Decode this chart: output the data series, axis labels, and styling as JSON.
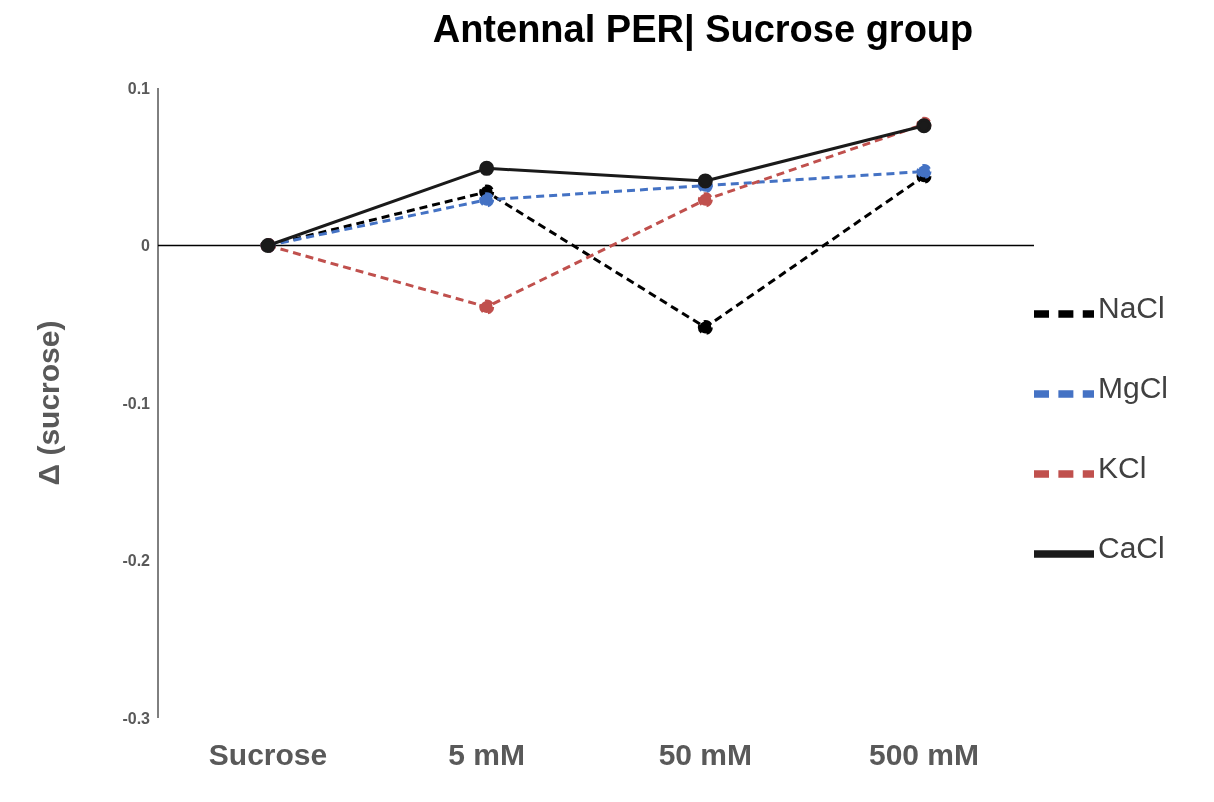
{
  "chart_data": {
    "type": "line",
    "title": "Antennal PER| Sucrose group",
    "ylabel": "Δ (sucrose)",
    "categories": [
      "Sucrose",
      "5 mM",
      "50 mM",
      "500 mM"
    ],
    "series": [
      {
        "name": "NaCl",
        "color": "#000000",
        "line_style": "dashed",
        "values": [
          0,
          0.034,
          -0.052,
          0.044
        ]
      },
      {
        "name": "MgCl",
        "color": "#4472c4",
        "line_style": "dashed",
        "values": [
          0,
          0.029,
          0.038,
          0.047
        ]
      },
      {
        "name": "KCl",
        "color": "#c0504d",
        "line_style": "dashed",
        "values": [
          0,
          -0.039,
          0.029,
          0.077
        ]
      },
      {
        "name": "CaCl",
        "color": "#1a1a1a",
        "line_style": "solid",
        "values": [
          0,
          0.049,
          0.041,
          0.076
        ]
      }
    ],
    "ylim": [
      -0.3,
      0.1
    ],
    "yticks": [
      -0.3,
      -0.2,
      -0.1,
      0,
      0.1
    ],
    "grid": false,
    "legend": "right",
    "marker": "circle",
    "ref_lines": [
      {
        "axis": "y",
        "value": 0,
        "color": "#000000"
      }
    ]
  }
}
